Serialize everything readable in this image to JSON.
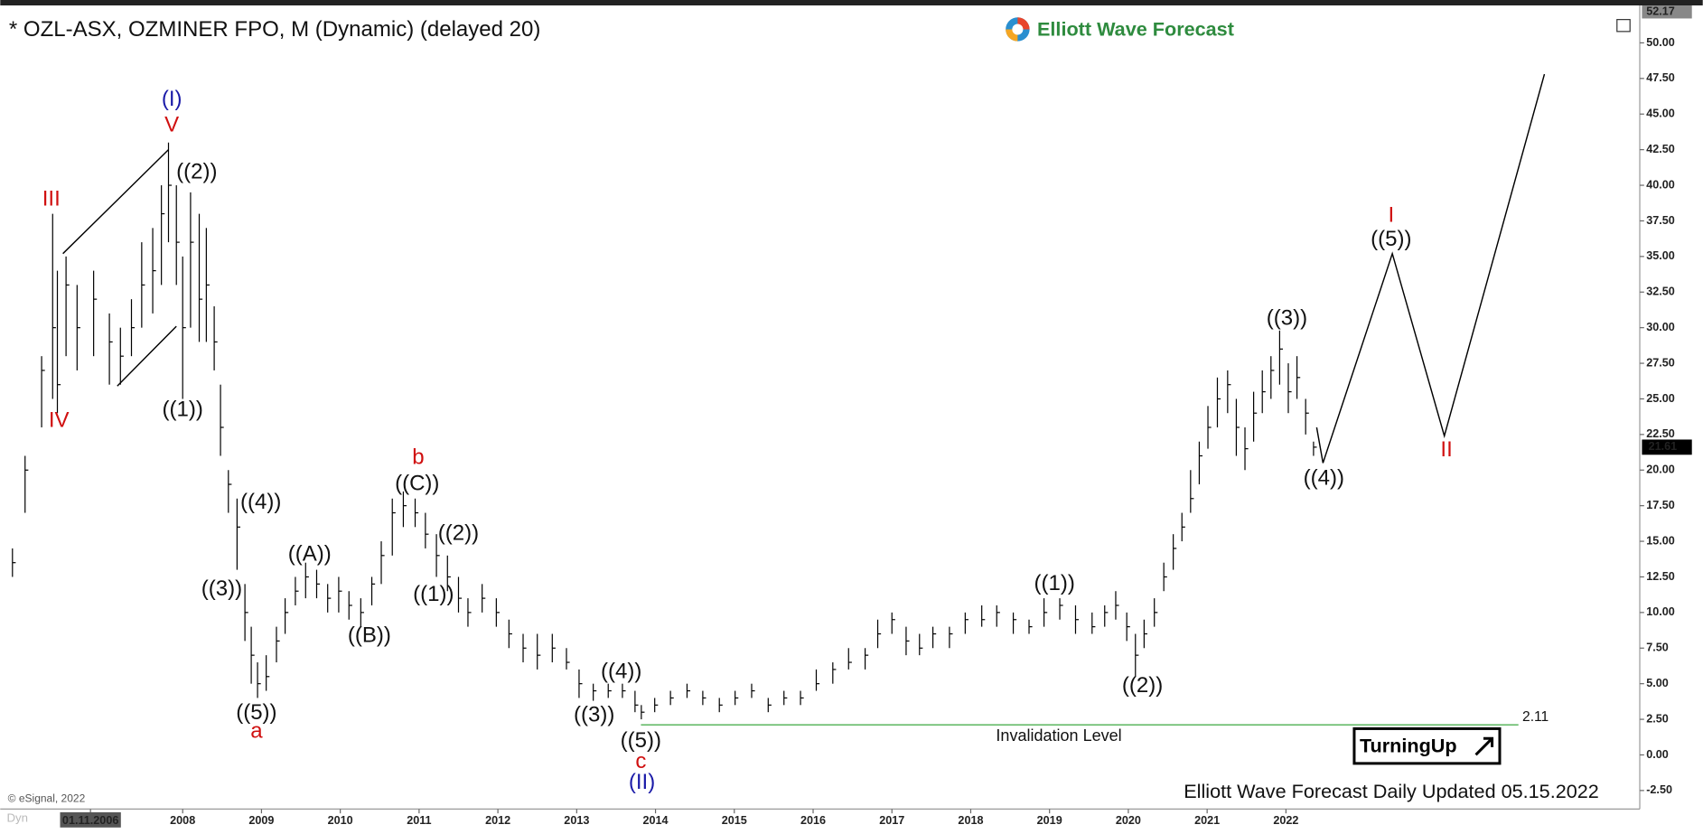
{
  "header": {
    "logo": "Elliott Wave Forecast"
  },
  "footer": {
    "updated": "Elliott Wave Forecast Daily Updated 05.15.2022",
    "copyright": "© eSignal, 2022",
    "badge": "TurningUp",
    "corner": "Dyn"
  },
  "chart_data": {
    "type": "ohlc",
    "title": "* OZL-ASX, OZMINER FPO, M (Dynamic) (delayed 20)",
    "color": "#000000",
    "x": [
      2005.84,
      2006.0,
      2006.21,
      2006.35,
      2006.41,
      2006.52,
      2006.66,
      2006.87,
      2007.07,
      2007.21,
      2007.35,
      2007.48,
      2007.62,
      2007.73,
      2007.82,
      2007.92,
      2008.0,
      2008.1,
      2008.21,
      2008.3,
      2008.4,
      2008.48,
      2008.58,
      2008.69,
      2008.79,
      2008.87,
      2008.95,
      2009.06,
      2009.19,
      2009.3,
      2009.43,
      2009.56,
      2009.7,
      2009.84,
      2009.98,
      2010.11,
      2010.26,
      2010.4,
      2010.52,
      2010.66,
      2010.8,
      2010.95,
      2011.08,
      2011.22,
      2011.36,
      2011.5,
      2011.62,
      2011.8,
      2011.98,
      2012.14,
      2012.32,
      2012.5,
      2012.69,
      2012.87,
      2013.03,
      2013.21,
      2013.4,
      2013.58,
      2013.74,
      2013.82,
      2013.99,
      2014.19,
      2014.4,
      2014.6,
      2014.81,
      2015.01,
      2015.22,
      2015.43,
      2015.63,
      2015.84,
      2016.04,
      2016.25,
      2016.45,
      2016.66,
      2016.82,
      2017.0,
      2017.18,
      2017.35,
      2017.52,
      2017.73,
      2017.93,
      2018.14,
      2018.33,
      2018.54,
      2018.74,
      2018.93,
      2019.13,
      2019.33,
      2019.54,
      2019.7,
      2019.84,
      2019.98,
      2020.09,
      2020.2,
      2020.33,
      2020.45,
      2020.57,
      2020.68,
      2020.79,
      2020.9,
      2021.01,
      2021.13,
      2021.26,
      2021.37,
      2021.48,
      2021.59,
      2021.7,
      2021.81,
      2021.92,
      2022.03,
      2022.14,
      2022.25,
      2022.35
    ],
    "high": [
      14.5,
      21,
      28,
      38,
      34,
      35,
      33,
      34,
      31,
      30,
      32,
      36,
      37,
      40,
      43,
      40,
      35,
      39.5,
      38,
      37,
      31.5,
      26,
      20,
      18,
      12,
      9,
      6.5,
      7,
      9,
      11,
      12.5,
      13.5,
      13,
      12,
      12.5,
      11.5,
      11,
      12.5,
      15,
      18,
      18.5,
      18,
      17,
      15.5,
      14,
      12.5,
      11,
      12,
      11,
      9.5,
      8.5,
      8.5,
      8.5,
      7.5,
      6,
      5,
      5,
      5,
      4.5,
      3.5,
      4,
      4.5,
      5,
      4.5,
      4,
      4.5,
      5,
      4,
      4.5,
      4.5,
      6,
      6.5,
      7.5,
      7.5,
      9.5,
      10,
      9,
      8.5,
      9,
      9,
      10,
      10.5,
      10.5,
      10,
      9.5,
      11,
      11,
      10.5,
      10,
      10.5,
      11.5,
      10,
      8.5,
      9.5,
      11,
      13.5,
      15.5,
      17,
      20,
      22,
      24.5,
      26.5,
      27,
      25,
      23,
      25.5,
      27,
      28,
      29.8,
      27.5,
      28,
      25,
      22
    ],
    "low": [
      12.5,
      17,
      23,
      25,
      24,
      28,
      27,
      28,
      26,
      26,
      28,
      30,
      31,
      33,
      36,
      33,
      25,
      30,
      29,
      29,
      27,
      21,
      17,
      13,
      8,
      5,
      4,
      4.5,
      6.5,
      8.5,
      10.5,
      11,
      11,
      10,
      10,
      9.5,
      9,
      10.5,
      12,
      14,
      16,
      16,
      14.5,
      12.5,
      11.5,
      10,
      9,
      10,
      9,
      7.5,
      6.5,
      6,
      6.5,
      6,
      4,
      3.8,
      4,
      4,
      3,
      2.5,
      3,
      3.5,
      4,
      3.5,
      3,
      3.5,
      4,
      3,
      3.5,
      3.5,
      4.5,
      5,
      6,
      6,
      7.5,
      8.5,
      7,
      7,
      7.5,
      7.5,
      8.5,
      9,
      9,
      8.5,
      8.5,
      9,
      9.5,
      8.5,
      8.5,
      9,
      9.5,
      8,
      5.5,
      7.5,
      9,
      11.5,
      13,
      15,
      17,
      19,
      21.5,
      23,
      24,
      21,
      20,
      22,
      24,
      25,
      26,
      24,
      25,
      22.5,
      21
    ],
    "close": [
      13.5,
      20,
      27,
      30,
      26,
      33,
      30,
      32,
      29,
      28,
      30,
      33,
      34,
      38,
      40,
      36,
      30,
      36,
      32,
      33,
      29,
      23,
      19,
      16,
      10,
      7,
      5,
      5.5,
      8,
      10,
      11.5,
      12.5,
      12,
      11,
      11.5,
      10.5,
      10,
      12,
      14,
      17,
      17.5,
      17,
      15.5,
      14,
      12.5,
      11,
      10,
      11,
      10,
      8.5,
      7.5,
      7,
      7.5,
      6.5,
      5,
      4.5,
      4.5,
      4.5,
      3.5,
      3,
      3.5,
      4,
      4.5,
      4,
      3.5,
      4,
      4.5,
      3.5,
      4,
      4,
      5,
      6,
      6.5,
      7,
      8.5,
      9.5,
      8,
      7.5,
      8.5,
      8.5,
      9.5,
      9.5,
      10,
      9.5,
      9,
      10,
      10.5,
      9.5,
      9,
      10,
      10.5,
      9,
      7,
      8.5,
      10,
      12.5,
      14.5,
      16,
      18,
      21,
      23,
      25,
      26,
      23,
      21.5,
      24,
      25.5,
      27,
      28.5,
      25.5,
      26.5,
      24,
      21.61
    ],
    "projection": {
      "x": [
        2022.39,
        2022.47,
        2023.35,
        2024.01,
        2025.28
      ],
      "y": [
        23,
        20.5,
        35.2,
        22.4,
        47.8
      ]
    },
    "channel": [
      {
        "x": [
          2006.48,
          2007.82
        ],
        "y": [
          35.2,
          42.5
        ]
      },
      {
        "x": [
          2007.17,
          2007.92
        ],
        "y": [
          25.9,
          30.1
        ]
      }
    ],
    "invalidation": {
      "value": 2.11,
      "label": "Invalidation Level",
      "x": [
        2013.815,
        2024.95
      ],
      "color": "#4caf50"
    },
    "last_price": 21.61,
    "top_price": 52.17,
    "xlim": [
      2005.685,
      2026.49
    ],
    "xticks": [
      {
        "value": 2006.83,
        "label": "01.11.2006"
      },
      2008,
      2009,
      2010,
      2011,
      2012,
      2013,
      2014,
      2015,
      2016,
      2017,
      2018,
      2019,
      2020,
      2021,
      2022
    ],
    "ylim": [
      -3.8,
      52.4
    ],
    "yticks": [
      {
        "value": 50,
        "label": "50.00"
      },
      {
        "value": 47.5,
        "label": "47.50"
      },
      {
        "value": 45,
        "label": "45.00"
      },
      {
        "value": 42.5,
        "label": "42.50"
      },
      {
        "value": 40,
        "label": "40.00"
      },
      {
        "value": 37.5,
        "label": "37.50"
      },
      {
        "value": 35,
        "label": "35.00"
      },
      {
        "value": 32.5,
        "label": "32.50"
      },
      {
        "value": 30,
        "label": "30.00"
      },
      {
        "value": 27.5,
        "label": "27.50"
      },
      {
        "value": 25,
        "label": "25.00"
      },
      {
        "value": 22.5,
        "label": "22.50"
      },
      {
        "value": 20,
        "label": "20.00"
      },
      {
        "value": 17.5,
        "label": "17.50"
      },
      {
        "value": 15,
        "label": "15.00"
      },
      {
        "value": 12.5,
        "label": "12.50"
      },
      {
        "value": 10,
        "label": "10.00"
      },
      {
        "value": 7.5,
        "label": "7.50"
      },
      {
        "value": 5,
        "label": "5.00"
      },
      {
        "value": 2.5,
        "label": "2.50"
      },
      {
        "value": 0,
        "label": "0.00"
      },
      {
        "value": -2.5,
        "label": "-2.50"
      }
    ],
    "annotations": [
      {
        "text": "(I)",
        "color": "#1a1aa8"
      },
      {
        "text": "V",
        "color": "#d01010"
      },
      {
        "text": "III",
        "color": "#d01010"
      },
      {
        "text": "IV",
        "color": "#d01010"
      },
      {
        "text": "((2))",
        "color": "#111"
      },
      {
        "text": "((1))",
        "color": "#111"
      },
      {
        "text": "((4))",
        "color": "#111"
      },
      {
        "text": "((3))",
        "color": "#111"
      },
      {
        "text": "((5))",
        "color": "#111"
      },
      {
        "text": "a",
        "color": "#d01010"
      },
      {
        "text": "((A))",
        "color": "#111"
      },
      {
        "text": "((B))",
        "color": "#111"
      },
      {
        "text": "b",
        "color": "#d01010"
      },
      {
        "text": "((C))",
        "color": "#111"
      },
      {
        "text": "((2))",
        "color": "#111"
      },
      {
        "text": "((1))",
        "color": "#111"
      },
      {
        "text": "((4))",
        "color": "#111"
      },
      {
        "text": "((3))",
        "color": "#111"
      },
      {
        "text": "((5))",
        "color": "#111"
      },
      {
        "text": "c",
        "color": "#d01010"
      },
      {
        "text": "(II)",
        "color": "#1a1aa8"
      },
      {
        "text": "((1))",
        "color": "#111"
      },
      {
        "text": "((2))",
        "color": "#111"
      },
      {
        "text": "((3))",
        "color": "#111"
      },
      {
        "text": "((4))",
        "color": "#111"
      },
      {
        "text": "I",
        "color": "#d01010"
      },
      {
        "text": "((5))",
        "color": "#111"
      },
      {
        "text": "II",
        "color": "#d01010"
      }
    ]
  }
}
